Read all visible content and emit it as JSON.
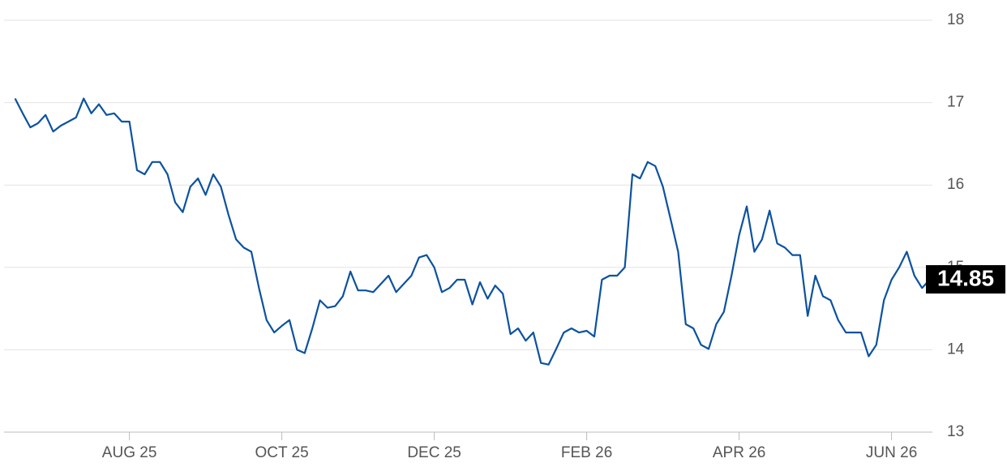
{
  "chart_data": {
    "type": "line",
    "categories": [
      null,
      null,
      null,
      null,
      null,
      null,
      null,
      null,
      null,
      null,
      null,
      null,
      null,
      null,
      null,
      "AUG 25",
      null,
      null,
      null,
      null,
      null,
      null,
      null,
      null,
      null,
      null,
      null,
      null,
      null,
      null,
      null,
      null,
      null,
      null,
      null,
      "OCT 25",
      null,
      null,
      null,
      null,
      null,
      null,
      null,
      null,
      null,
      null,
      null,
      null,
      null,
      null,
      null,
      null,
      null,
      null,
      null,
      "DEC 25",
      null,
      null,
      null,
      null,
      null,
      null,
      null,
      null,
      null,
      null,
      null,
      null,
      null,
      null,
      null,
      null,
      null,
      null,
      null,
      "FEB 26",
      null,
      null,
      null,
      null,
      null,
      null,
      null,
      null,
      null,
      null,
      null,
      null,
      null,
      null,
      null,
      null,
      null,
      null,
      null,
      "APR 26",
      null,
      null,
      null,
      null,
      null,
      null,
      null,
      null,
      null,
      null,
      null,
      null,
      null,
      null,
      null,
      null,
      null,
      null,
      null,
      "JUN 26",
      null,
      null,
      null,
      null,
      null
    ],
    "values": [
      17.05,
      16.87,
      16.7,
      16.75,
      16.85,
      16.65,
      16.72,
      16.77,
      16.82,
      17.05,
      16.87,
      16.98,
      16.85,
      16.87,
      16.77,
      16.77,
      16.18,
      16.13,
      16.28,
      16.28,
      16.13,
      15.79,
      15.67,
      15.98,
      16.08,
      15.88,
      16.13,
      15.98,
      15.64,
      15.34,
      15.24,
      15.19,
      14.75,
      14.36,
      14.21,
      14.29,
      14.36,
      14.0,
      13.96,
      14.26,
      14.6,
      14.51,
      14.53,
      14.65,
      14.95,
      14.72,
      14.72,
      14.7,
      14.8,
      14.9,
      14.7,
      14.8,
      14.9,
      15.12,
      15.15,
      15.0,
      14.7,
      14.75,
      14.85,
      14.85,
      14.55,
      14.82,
      14.62,
      14.78,
      14.68,
      14.19,
      14.26,
      14.11,
      14.21,
      13.84,
      13.82,
      14.01,
      14.21,
      14.26,
      14.21,
      14.23,
      14.16,
      14.85,
      14.9,
      14.9,
      15.0,
      16.13,
      16.08,
      16.28,
      16.23,
      15.98,
      15.59,
      15.19,
      14.31,
      14.26,
      14.06,
      14.01,
      14.31,
      14.46,
      14.9,
      15.39,
      15.74,
      15.19,
      15.34,
      15.69,
      15.29,
      15.24,
      15.15,
      15.15,
      14.41,
      14.9,
      14.65,
      14.6,
      14.36,
      14.21,
      14.21,
      14.21,
      13.92,
      14.06,
      14.6,
      14.85,
      15.0,
      15.19,
      14.9,
      14.75,
      14.85
    ],
    "color": "#0b52a0",
    "ylim": [
      13,
      18
    ],
    "yticks": [
      13,
      14,
      15,
      16,
      17,
      18
    ],
    "grid": true
  }
}
